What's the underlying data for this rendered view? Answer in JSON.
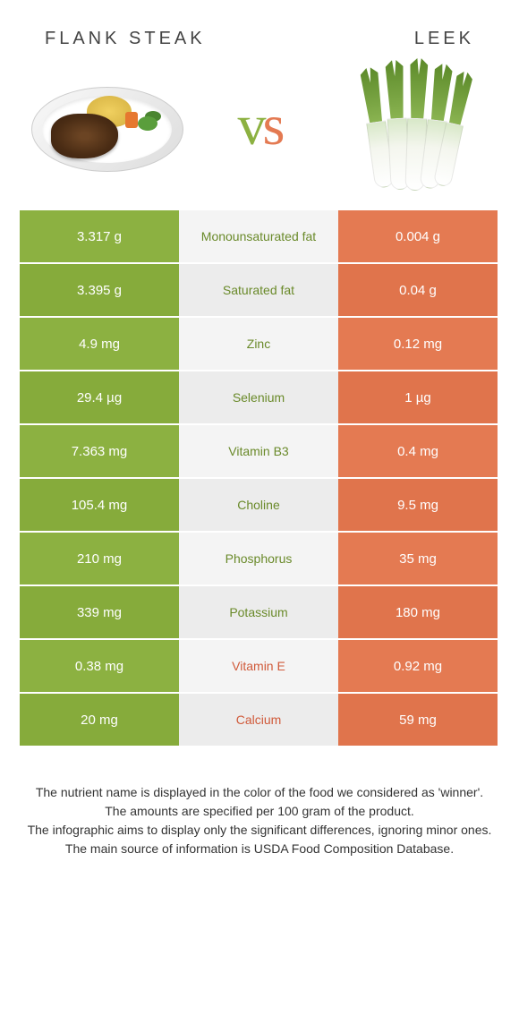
{
  "colors": {
    "left_bg": "#8cb141",
    "left_bg_alt": "#86ab3b",
    "mid_bg": "#f4f4f4",
    "mid_bg_alt": "#ececec",
    "right_bg": "#e47a52",
    "right_bg_alt": "#e0744c",
    "left_text": "#6a8a2a",
    "right_text": "#d05a3a",
    "vs_left": "#8cb141",
    "vs_right": "#e47a52"
  },
  "header": {
    "left_title": "FLANK STEAK",
    "right_title": "LEEK",
    "vs": "vs"
  },
  "rows": [
    {
      "left": "3.317 g",
      "label": "Monounsaturated fat",
      "right": "0.004 g",
      "winner": "left"
    },
    {
      "left": "3.395 g",
      "label": "Saturated fat",
      "right": "0.04 g",
      "winner": "left"
    },
    {
      "left": "4.9 mg",
      "label": "Zinc",
      "right": "0.12 mg",
      "winner": "left"
    },
    {
      "left": "29.4 µg",
      "label": "Selenium",
      "right": "1 µg",
      "winner": "left"
    },
    {
      "left": "7.363 mg",
      "label": "Vitamin B3",
      "right": "0.4 mg",
      "winner": "left"
    },
    {
      "left": "105.4 mg",
      "label": "Choline",
      "right": "9.5 mg",
      "winner": "left"
    },
    {
      "left": "210 mg",
      "label": "Phosphorus",
      "right": "35 mg",
      "winner": "left"
    },
    {
      "left": "339 mg",
      "label": "Potassium",
      "right": "180 mg",
      "winner": "left"
    },
    {
      "left": "0.38 mg",
      "label": "Vitamin E",
      "right": "0.92 mg",
      "winner": "right"
    },
    {
      "left": "20 mg",
      "label": "Calcium",
      "right": "59 mg",
      "winner": "right"
    }
  ],
  "footer": {
    "line1": "The nutrient name is displayed in the color of the food we considered as 'winner'.",
    "line2": "The amounts are specified per 100 gram of the product.",
    "line3": "The infographic aims to display only the significant differences, ignoring minor ones.",
    "line4": "The main source of information is USDA Food Composition Database."
  }
}
